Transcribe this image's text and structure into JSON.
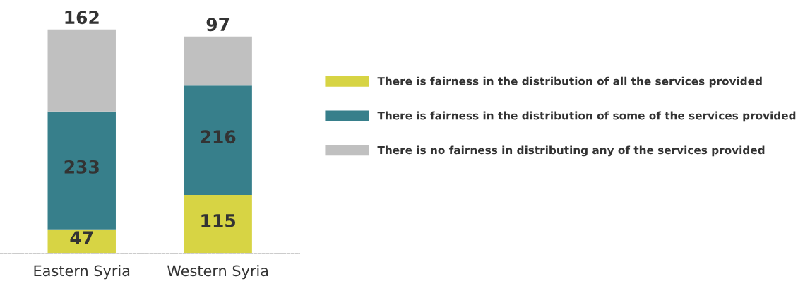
{
  "chart_data": {
    "type": "bar",
    "stacked": true,
    "data_labels": true,
    "legend": "right",
    "categories": [
      "Eastern Syria",
      "Western Syria"
    ],
    "series": [
      {
        "name": "There is fairness in the distribution of all the services provided",
        "color": "#d7d444",
        "values": [
          47,
          115
        ]
      },
      {
        "name": "There is fairness in the distribution of some of the services provided",
        "color": "#377f8b",
        "values": [
          233,
          216
        ]
      },
      {
        "name": "There is no fairness in distributing any of the services provided",
        "color": "#c0c0c0",
        "values": [
          162,
          97
        ]
      }
    ]
  }
}
